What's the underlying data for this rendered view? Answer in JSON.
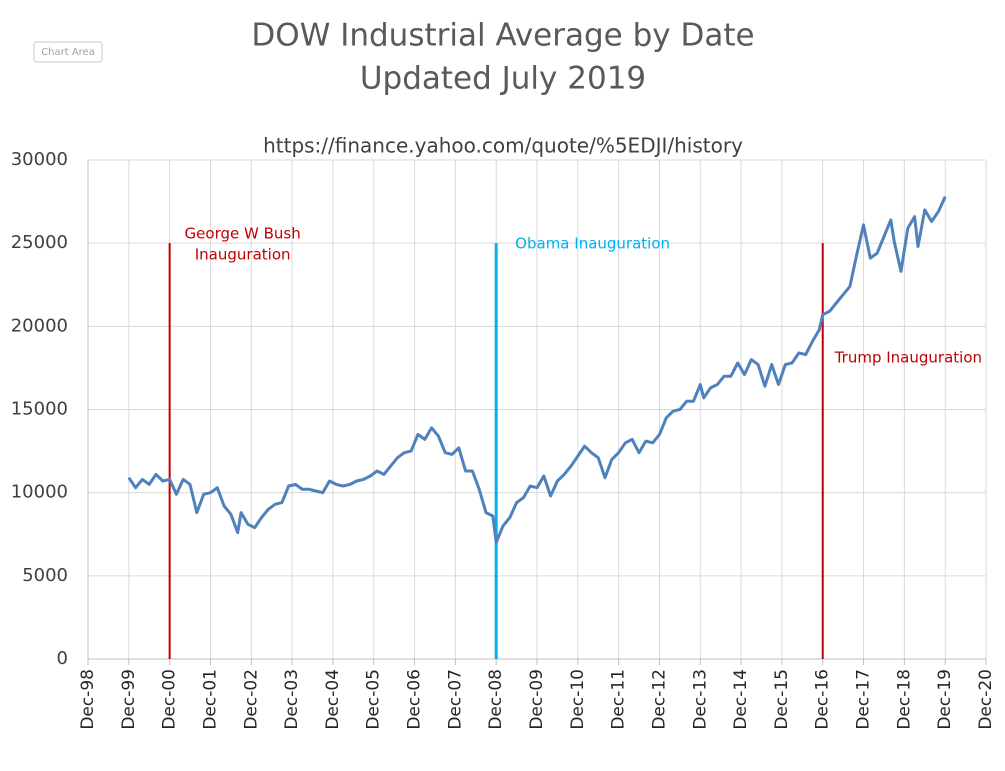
{
  "ui": {
    "tooltip": "Chart Area"
  },
  "chart_data": {
    "type": "line",
    "title": "DOW Industrial Average by Date",
    "subtitle": "Updated July 2019",
    "source": "https://finance.yahoo.com/quote/%5EDJI/history",
    "grid": true,
    "ylim": [
      0,
      30000
    ],
    "yticks": [
      0,
      5000,
      10000,
      15000,
      20000,
      25000,
      30000
    ],
    "xlim": [
      "1998-12",
      "2020-12"
    ],
    "xticks": [
      {
        "value": "1998-12",
        "label": "Dec-98"
      },
      {
        "value": "1999-12",
        "label": "Dec-99"
      },
      {
        "value": "2000-12",
        "label": "Dec-00"
      },
      {
        "value": "2001-12",
        "label": "Dec-01"
      },
      {
        "value": "2002-12",
        "label": "Dec-02"
      },
      {
        "value": "2003-12",
        "label": "Dec-03"
      },
      {
        "value": "2004-12",
        "label": "Dec-04"
      },
      {
        "value": "2005-12",
        "label": "Dec-05"
      },
      {
        "value": "2006-12",
        "label": "Dec-06"
      },
      {
        "value": "2007-12",
        "label": "Dec-07"
      },
      {
        "value": "2008-12",
        "label": "Dec-08"
      },
      {
        "value": "2009-12",
        "label": "Dec-09"
      },
      {
        "value": "2010-12",
        "label": "Dec-10"
      },
      {
        "value": "2011-12",
        "label": "Dec-11"
      },
      {
        "value": "2012-12",
        "label": "Dec-12"
      },
      {
        "value": "2013-12",
        "label": "Dec-13"
      },
      {
        "value": "2014-12",
        "label": "Dec-14"
      },
      {
        "value": "2015-12",
        "label": "Dec-15"
      },
      {
        "value": "2016-12",
        "label": "Dec-16"
      },
      {
        "value": "2017-12",
        "label": "Dec-17"
      },
      {
        "value": "2018-12",
        "label": "Dec-18"
      },
      {
        "value": "2019-12",
        "label": "Dec-19"
      },
      {
        "value": "2020-12",
        "label": "Dec-20"
      }
    ],
    "x": [
      "1999-12",
      "2000-02",
      "2000-04",
      "2000-06",
      "2000-08",
      "2000-10",
      "2000-12",
      "2001-02",
      "2001-04",
      "2001-06",
      "2001-08",
      "2001-10",
      "2001-12",
      "2002-02",
      "2002-04",
      "2002-06",
      "2002-08",
      "2002-09",
      "2002-11",
      "2003-01",
      "2003-03",
      "2003-05",
      "2003-07",
      "2003-09",
      "2003-11",
      "2004-01",
      "2004-03",
      "2004-05",
      "2004-07",
      "2004-09",
      "2004-11",
      "2005-01",
      "2005-03",
      "2005-05",
      "2005-07",
      "2005-09",
      "2005-11",
      "2006-01",
      "2006-03",
      "2006-05",
      "2006-07",
      "2006-09",
      "2006-11",
      "2007-01",
      "2007-03",
      "2007-05",
      "2007-07",
      "2007-09",
      "2007-11",
      "2008-01",
      "2008-03",
      "2008-05",
      "2008-07",
      "2008-09",
      "2008-11",
      "2008-12",
      "2009-02",
      "2009-04",
      "2009-06",
      "2009-08",
      "2009-10",
      "2009-12",
      "2010-02",
      "2010-04",
      "2010-06",
      "2010-08",
      "2010-10",
      "2010-12",
      "2011-02",
      "2011-04",
      "2011-06",
      "2011-08",
      "2011-10",
      "2011-12",
      "2012-02",
      "2012-04",
      "2012-06",
      "2012-08",
      "2012-10",
      "2012-12",
      "2013-02",
      "2013-04",
      "2013-06",
      "2013-08",
      "2013-10",
      "2013-12",
      "2014-01",
      "2014-03",
      "2014-05",
      "2014-07",
      "2014-09",
      "2014-11",
      "2015-01",
      "2015-03",
      "2015-05",
      "2015-07",
      "2015-09",
      "2015-11",
      "2016-01",
      "2016-03",
      "2016-05",
      "2016-07",
      "2016-09",
      "2016-11",
      "2016-12",
      "2017-02",
      "2017-04",
      "2017-06",
      "2017-08",
      "2017-10",
      "2017-12",
      "2018-02",
      "2018-04",
      "2018-06",
      "2018-08",
      "2018-09",
      "2018-11",
      "2019-01",
      "2019-03",
      "2019-04",
      "2019-06",
      "2019-08",
      "2019-10",
      "2019-12"
    ],
    "series": [
      {
        "color": "#4f81bd",
        "values": [
          10900,
          10300,
          10800,
          10500,
          11100,
          10700,
          10800,
          9900,
          10800,
          10500,
          8800,
          9900,
          10000,
          10300,
          9200,
          8700,
          7600,
          8800,
          8100,
          7900,
          8500,
          9000,
          9300,
          9400,
          10400,
          10500,
          10200,
          10200,
          10100,
          10000,
          10700,
          10500,
          10400,
          10500,
          10700,
          10800,
          11000,
          11300,
          11100,
          11600,
          12100,
          12400,
          12500,
          13500,
          13200,
          13900,
          13400,
          12400,
          12300,
          12700,
          11300,
          11300,
          10200,
          8800,
          8600,
          7000,
          8000,
          8500,
          9400,
          9700,
          10400,
          10300,
          11000,
          9800,
          10700,
          11100,
          11600,
          12200,
          12800,
          12400,
          12100,
          10900,
          12000,
          12400,
          13000,
          13200,
          12400,
          13100,
          13000,
          13500,
          14500,
          14900,
          15000,
          15500,
          15500,
          16500,
          15700,
          16300,
          16500,
          17000,
          17000,
          17800,
          17100,
          18000,
          17700,
          16400,
          17700,
          16500,
          17700,
          17800,
          18400,
          18300,
          19100,
          19800,
          20700,
          20900,
          21400,
          21900,
          22400,
          24300,
          26100,
          24100,
          24400,
          25400,
          26400,
          25100,
          23300,
          25900,
          26600,
          24800,
          27000,
          26300,
          26900,
          27800
        ]
      }
    ],
    "annotations": [
      {
        "text": [
          "George W Bush",
          "Inauguration"
        ],
        "x": "2000-12",
        "y": [
          0,
          25000
        ],
        "color": "#c00000"
      },
      {
        "text": [
          "Obama Inauguration"
        ],
        "x": "2008-12",
        "y": [
          0,
          25000
        ],
        "color": "#00b0f0"
      },
      {
        "text": [
          "Trump Inauguration"
        ],
        "x": "2016-12",
        "y": [
          0,
          25000
        ],
        "color": "#c00000"
      }
    ]
  }
}
